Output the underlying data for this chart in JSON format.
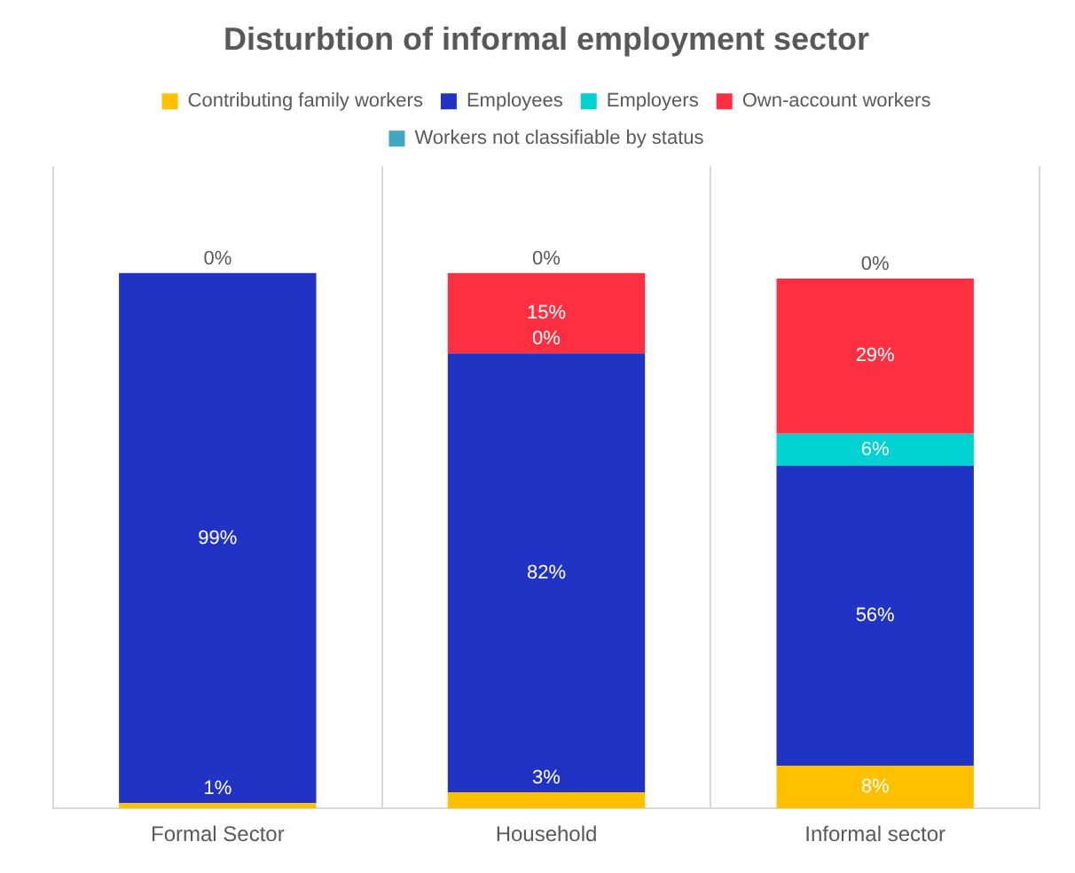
{
  "chart_data": {
    "type": "bar",
    "title": "Disturbtion of informal employment sector",
    "categories": [
      "Formal Sector",
      "Household",
      "Informal sector"
    ],
    "stacked": true,
    "ylim": [
      0,
      120
    ],
    "tick_labels": "x",
    "grid": "x",
    "legend": "top",
    "data_labels": true,
    "series": [
      {
        "name": "Contributing family workers",
        "color": "#ffc000",
        "values": [
          1,
          3,
          8
        ],
        "value_labels": [
          "1%",
          "3%",
          "8%"
        ]
      },
      {
        "name": "Employees",
        "color": "#2033c4",
        "values": [
          99,
          82,
          56
        ],
        "value_labels": [
          "99%",
          "82%",
          "56%"
        ]
      },
      {
        "name": "Employers",
        "color": "#00d1d1",
        "values": [
          0,
          0,
          6
        ],
        "value_labels": [
          null,
          "0%",
          "6%"
        ]
      },
      {
        "name": "Own-account workers",
        "color": "#fc3040",
        "values": [
          0,
          15,
          29
        ],
        "value_labels": [
          null,
          "15%",
          "29%"
        ]
      },
      {
        "name": "Workers not classifiable by status",
        "color": "#40a8c0",
        "values": [
          0,
          0,
          0
        ],
        "value_labels": [
          "0%",
          "0%",
          "0%"
        ]
      }
    ]
  }
}
